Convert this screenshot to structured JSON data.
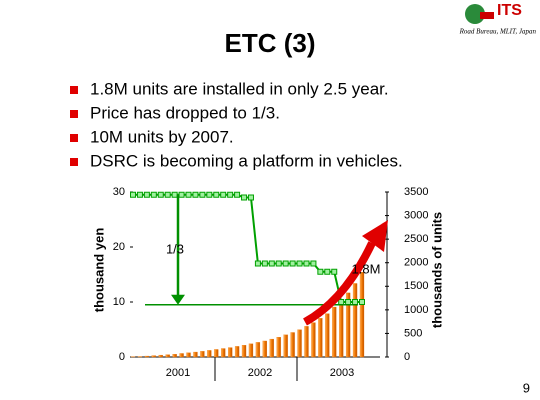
{
  "slide": {
    "logo": "ITS",
    "credit": "Road Bureau, MLIT, Japan",
    "page": "9",
    "bullets": [
      "1.8M units are installed in only 2.5 year.",
      "Price has dropped to 1/3.",
      "10M units by 2007.",
      "DSRC is becoming a platform in vehicles."
    ]
  },
  "chart_data": {
    "type": "combo",
    "title": "ETC (3)",
    "y_label": "thousand yen",
    "y2_label": "thousands of units",
    "x_groups": [
      "2001",
      "2002",
      "2003"
    ],
    "categories": [
      null,
      null,
      null,
      null,
      null,
      null,
      null,
      null,
      null,
      null,
      null,
      null,
      null,
      null,
      null,
      null,
      null,
      null,
      null,
      null,
      null,
      null,
      null,
      null,
      null,
      null,
      null,
      null,
      null,
      null,
      null,
      null,
      null,
      null
    ],
    "series": [
      {
        "type": "bar",
        "axis": "y2",
        "color": "#f07800",
        "values": [
          5,
          10,
          20,
          30,
          40,
          50,
          60,
          75,
          90,
          105,
          120,
          140,
          160,
          180,
          200,
          225,
          250,
          280,
          310,
          340,
          380,
          420,
          470,
          520,
          580,
          650,
          730,
          820,
          920,
          1060,
          1200,
          1360,
          1560,
          1800
        ]
      },
      {
        "type": "line",
        "color": "#00a000",
        "values": [
          29.5,
          29.5,
          29.5,
          29.5,
          29.5,
          29.5,
          29.5,
          29.5,
          29.5,
          29.5,
          29.5,
          29.5,
          29.5,
          29.5,
          29.5,
          29.5,
          29,
          29,
          17,
          17,
          17,
          17,
          17,
          17,
          17,
          17,
          17,
          15.5,
          15.5,
          15.5,
          10,
          10,
          10,
          10
        ]
      }
    ],
    "target_price": 9.5,
    "annotations": [
      "1/3",
      "1.8M"
    ],
    "ylim": [
      0,
      30
    ],
    "yticks": [
      0,
      10,
      20,
      30
    ],
    "y2lim": [
      0,
      3500
    ],
    "y2ticks": [
      0,
      500,
      1000,
      1500,
      2000,
      2500,
      3000,
      3500
    ]
  }
}
